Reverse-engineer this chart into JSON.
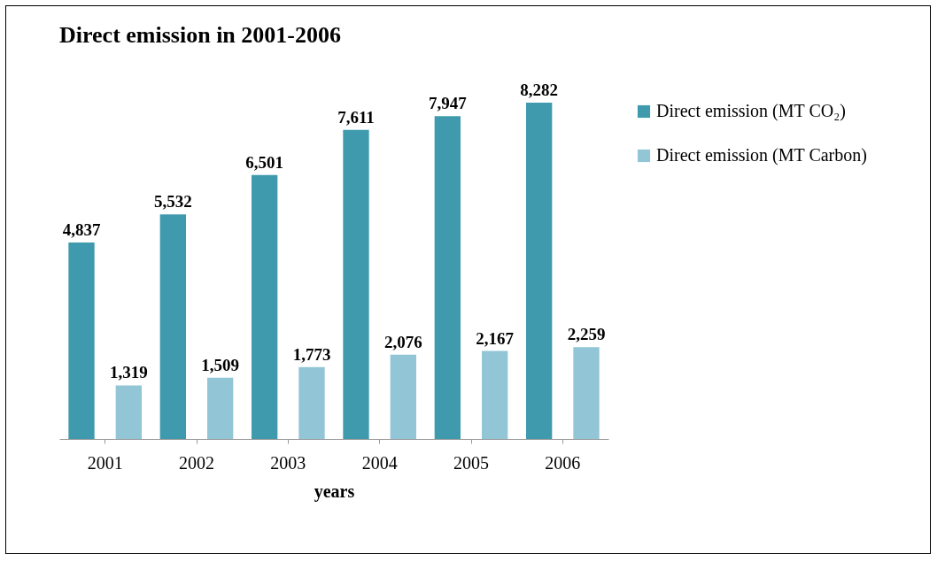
{
  "chart_data": {
    "type": "bar",
    "title": "Direct emission in 2001-2006",
    "xlabel": "years",
    "categories": [
      "2001",
      "2002",
      "2003",
      "2004",
      "2005",
      "2006"
    ],
    "series": [
      {
        "name": "Direct emission (MT CO₂)",
        "color": "#3f9aae",
        "values": [
          4837,
          5532,
          6501,
          7611,
          7947,
          8282
        ],
        "value_labels": [
          "4,837",
          "5,532",
          "6,501",
          "7,611",
          "7,947",
          "8,282"
        ]
      },
      {
        "name": "Direct emission (MT Carbon)",
        "color": "#92c5d6",
        "values": [
          1319,
          1509,
          1773,
          2076,
          2167,
          2259
        ],
        "value_labels": [
          "1,319",
          "1,509",
          "1,773",
          "2,076",
          "2,167",
          "2,259"
        ]
      }
    ],
    "legend": "right"
  }
}
